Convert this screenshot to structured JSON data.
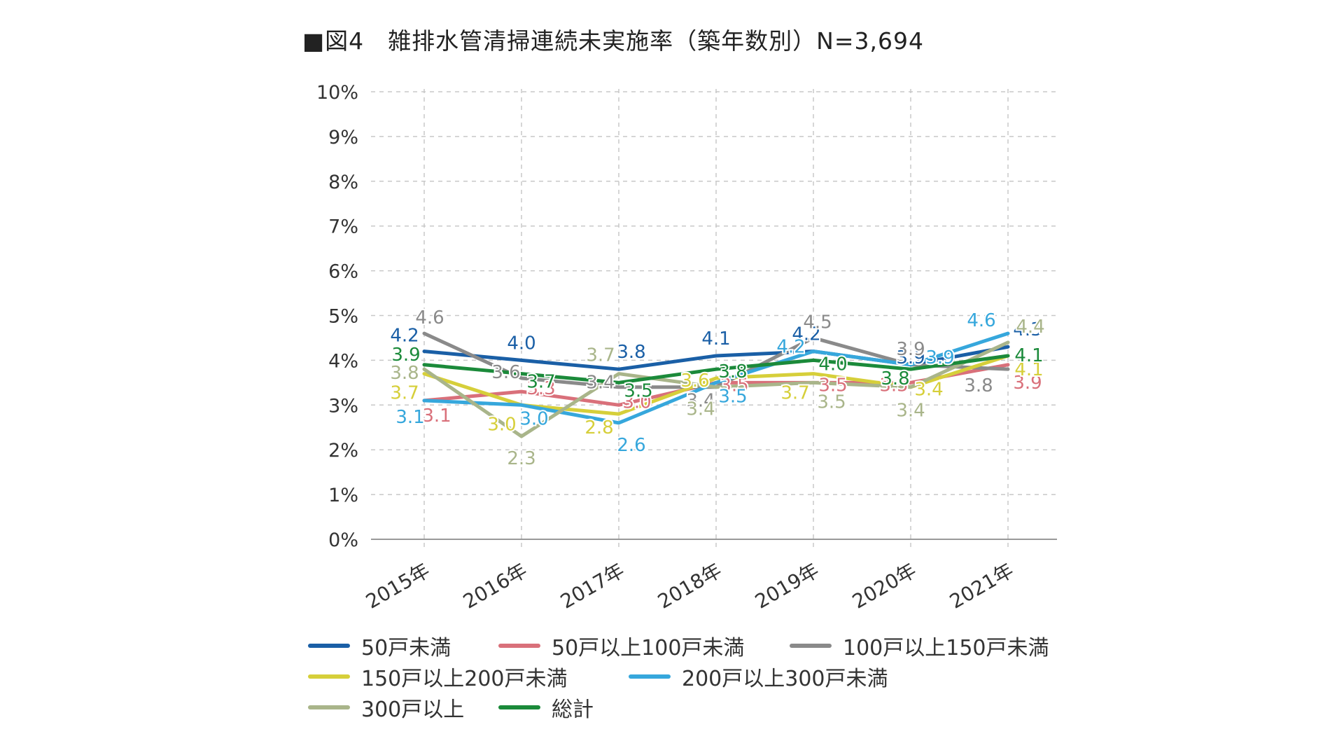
{
  "title": "■図4　雑排水管清掃連続未実施率（築年数別）N=3,694",
  "chart_data": {
    "type": "line",
    "title": "■図4　雑排水管清掃連続未実施率（築年数別）N=3,694",
    "categories": [
      "2015年",
      "2016年",
      "2017年",
      "2018年",
      "2019年",
      "2020年",
      "2021年"
    ],
    "ylim": [
      0,
      10
    ],
    "y_ticks": [
      "0%",
      "1%",
      "2%",
      "3%",
      "4%",
      "5%",
      "6%",
      "7%",
      "8%",
      "9%",
      "10%"
    ],
    "grid": "dashed",
    "xlabel": "",
    "ylabel": "",
    "legend_position": "bottom",
    "series": [
      {
        "name": "50戸未満",
        "color": "#1a5fa6",
        "values": [
          4.2,
          4.0,
          3.8,
          4.1,
          4.2,
          3.9,
          4.3
        ]
      },
      {
        "name": "50戸以上100戸未満",
        "color": "#d9707a",
        "values": [
          3.1,
          3.3,
          3.0,
          3.5,
          3.5,
          3.5,
          3.9
        ]
      },
      {
        "name": "100戸以上150戸未満",
        "color": "#8a8a8a",
        "values": [
          4.6,
          3.6,
          3.4,
          3.4,
          4.5,
          3.9,
          3.8
        ]
      },
      {
        "name": "150戸以上200戸未満",
        "color": "#d6cf3a",
        "values": [
          3.7,
          3.0,
          2.8,
          3.6,
          3.7,
          3.4,
          4.1
        ]
      },
      {
        "name": "200戸以上300戸未満",
        "color": "#36a7dc",
        "values": [
          3.1,
          3.0,
          2.6,
          3.5,
          4.2,
          3.9,
          4.6
        ]
      },
      {
        "name": "300戸以上",
        "color": "#a9b58a",
        "values": [
          3.8,
          2.3,
          3.7,
          3.4,
          3.5,
          3.4,
          4.4
        ]
      },
      {
        "name": "総計",
        "color": "#1b8a3a",
        "values": [
          3.9,
          3.7,
          3.5,
          3.8,
          4.0,
          3.8,
          4.1
        ]
      }
    ]
  }
}
